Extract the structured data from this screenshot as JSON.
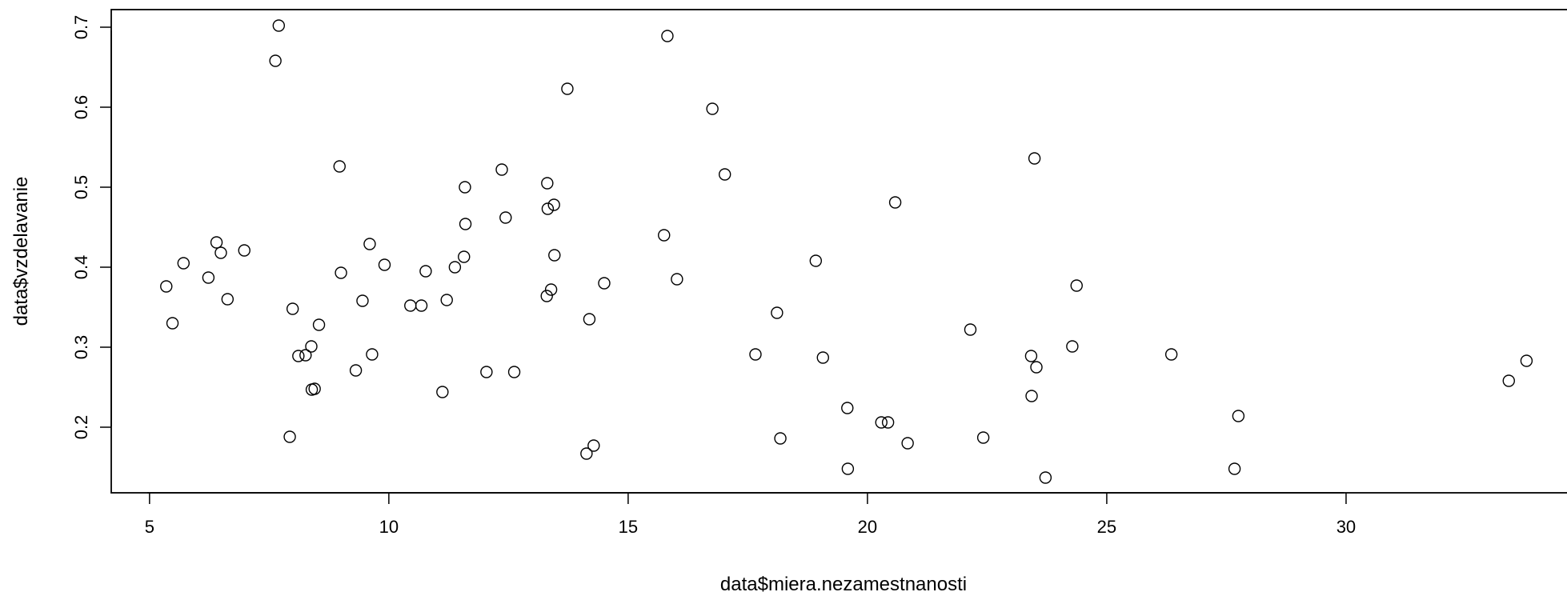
{
  "chart_data": {
    "type": "scatter",
    "title": "",
    "xlabel": "data$miera.nezamestnanosti",
    "ylabel": "data$vzdelavanie",
    "xlim": [
      4.2,
      34.8
    ],
    "ylim": [
      0.118,
      0.722
    ],
    "x_ticks": [
      5,
      10,
      15,
      20,
      25,
      30
    ],
    "x_tick_labels": [
      "5",
      "10",
      "15",
      "20",
      "25",
      "30"
    ],
    "y_ticks": [
      0.2,
      0.3,
      0.4,
      0.5,
      0.6,
      0.7
    ],
    "y_tick_labels": [
      "0.2",
      "0.3",
      "0.4",
      "0.5",
      "0.6",
      "0.7"
    ],
    "grid": false,
    "legend": "none",
    "marker": "open-circle",
    "color": "#000000",
    "points": [
      {
        "x": 5.35,
        "y": 0.376
      },
      {
        "x": 5.48,
        "y": 0.33
      },
      {
        "x": 5.71,
        "y": 0.405
      },
      {
        "x": 6.23,
        "y": 0.387
      },
      {
        "x": 6.4,
        "y": 0.431
      },
      {
        "x": 6.49,
        "y": 0.418
      },
      {
        "x": 6.63,
        "y": 0.36
      },
      {
        "x": 6.98,
        "y": 0.421
      },
      {
        "x": 7.63,
        "y": 0.658
      },
      {
        "x": 7.7,
        "y": 0.702
      },
      {
        "x": 7.93,
        "y": 0.188
      },
      {
        "x": 7.99,
        "y": 0.348
      },
      {
        "x": 8.11,
        "y": 0.289
      },
      {
        "x": 8.26,
        "y": 0.29
      },
      {
        "x": 8.38,
        "y": 0.301
      },
      {
        "x": 8.39,
        "y": 0.247
      },
      {
        "x": 8.45,
        "y": 0.248
      },
      {
        "x": 8.54,
        "y": 0.328
      },
      {
        "x": 8.97,
        "y": 0.526
      },
      {
        "x": 9.0,
        "y": 0.393
      },
      {
        "x": 9.31,
        "y": 0.271
      },
      {
        "x": 9.45,
        "y": 0.358
      },
      {
        "x": 9.6,
        "y": 0.429
      },
      {
        "x": 9.65,
        "y": 0.291
      },
      {
        "x": 9.91,
        "y": 0.403
      },
      {
        "x": 10.45,
        "y": 0.352
      },
      {
        "x": 10.68,
        "y": 0.352
      },
      {
        "x": 10.77,
        "y": 0.395
      },
      {
        "x": 11.12,
        "y": 0.244
      },
      {
        "x": 11.21,
        "y": 0.359
      },
      {
        "x": 11.38,
        "y": 0.4
      },
      {
        "x": 11.57,
        "y": 0.413
      },
      {
        "x": 11.59,
        "y": 0.5
      },
      {
        "x": 11.6,
        "y": 0.454
      },
      {
        "x": 12.04,
        "y": 0.269
      },
      {
        "x": 12.36,
        "y": 0.522
      },
      {
        "x": 12.44,
        "y": 0.462
      },
      {
        "x": 12.62,
        "y": 0.269
      },
      {
        "x": 13.3,
        "y": 0.364
      },
      {
        "x": 13.31,
        "y": 0.505
      },
      {
        "x": 13.32,
        "y": 0.473
      },
      {
        "x": 13.39,
        "y": 0.372
      },
      {
        "x": 13.45,
        "y": 0.478
      },
      {
        "x": 13.46,
        "y": 0.415
      },
      {
        "x": 13.73,
        "y": 0.623
      },
      {
        "x": 14.13,
        "y": 0.167
      },
      {
        "x": 14.19,
        "y": 0.335
      },
      {
        "x": 14.28,
        "y": 0.177
      },
      {
        "x": 14.5,
        "y": 0.38
      },
      {
        "x": 15.75,
        "y": 0.44
      },
      {
        "x": 15.82,
        "y": 0.689
      },
      {
        "x": 16.02,
        "y": 0.385
      },
      {
        "x": 16.76,
        "y": 0.598
      },
      {
        "x": 17.02,
        "y": 0.516
      },
      {
        "x": 17.66,
        "y": 0.291
      },
      {
        "x": 18.11,
        "y": 0.343
      },
      {
        "x": 18.18,
        "y": 0.186
      },
      {
        "x": 18.92,
        "y": 0.408
      },
      {
        "x": 19.07,
        "y": 0.287
      },
      {
        "x": 19.58,
        "y": 0.224
      },
      {
        "x": 19.59,
        "y": 0.148
      },
      {
        "x": 20.29,
        "y": 0.206
      },
      {
        "x": 20.43,
        "y": 0.206
      },
      {
        "x": 20.58,
        "y": 0.481
      },
      {
        "x": 20.84,
        "y": 0.18
      },
      {
        "x": 22.15,
        "y": 0.322
      },
      {
        "x": 22.42,
        "y": 0.187
      },
      {
        "x": 23.42,
        "y": 0.289
      },
      {
        "x": 23.43,
        "y": 0.239
      },
      {
        "x": 23.49,
        "y": 0.536
      },
      {
        "x": 23.53,
        "y": 0.275
      },
      {
        "x": 23.72,
        "y": 0.137
      },
      {
        "x": 24.28,
        "y": 0.301
      },
      {
        "x": 24.37,
        "y": 0.377
      },
      {
        "x": 26.35,
        "y": 0.291
      },
      {
        "x": 27.67,
        "y": 0.148
      },
      {
        "x": 27.75,
        "y": 0.214
      },
      {
        "x": 33.4,
        "y": 0.258
      },
      {
        "x": 33.77,
        "y": 0.283
      }
    ]
  }
}
